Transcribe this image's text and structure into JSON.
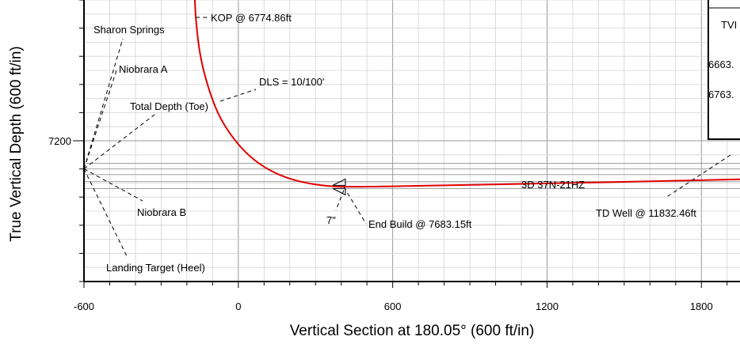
{
  "chart_data": {
    "type": "line",
    "xlabel": "Vertical Section at 180.05° (600 ft/in)",
    "ylabel": "True Vertical Depth (600 ft/in)",
    "xlim": [
      -600,
      1950
    ],
    "ylim": [
      7700,
      6700
    ],
    "x_ticks": [
      -600,
      0,
      600,
      1200,
      1800
    ],
    "x_tick_labels": [
      "-600",
      "0",
      "600",
      "1200",
      "1800"
    ],
    "y_ticks": [
      7200
    ],
    "y_tick_labels": [
      "7200"
    ],
    "grid": true,
    "series": [
      {
        "name": "3D 37N-21HZ",
        "color": "#e00000",
        "x": [
          -170,
          -165,
          -150,
          -120,
          -80,
          -30,
          30,
          100,
          180,
          260,
          340,
          410,
          600,
          1000,
          1400,
          1800,
          1950
        ],
        "y": [
          6680,
          6774.86,
          6895,
          7005,
          7105,
          7180,
          7245,
          7295,
          7330,
          7350,
          7360,
          7364,
          7362,
          7355,
          7348,
          7340,
          7337
        ]
      }
    ],
    "formation_lines": [
      {
        "name": "Sharon Springs",
        "tvd": 7280
      },
      {
        "name": "Niobrara A",
        "tvd": 7300
      },
      {
        "name": "Total Depth (Toe)",
        "tvd": 7320
      },
      {
        "name": "Niobrara B",
        "tvd": 7345
      },
      {
        "name": "Landing Target (Heel)",
        "tvd": 7370
      }
    ],
    "annotations": [
      {
        "id": "kop",
        "text": "KOP @ 6774.86ft"
      },
      {
        "id": "dls",
        "text": "DLS = 10/100'"
      },
      {
        "id": "end-build",
        "text": "End Build @ 7683.15ft"
      },
      {
        "id": "casing",
        "text": "7\""
      },
      {
        "id": "well-name",
        "text": "3D 37N-21HZ",
        "color": "#e00000"
      },
      {
        "id": "td-well",
        "text": "TD Well @ 11832.46ft"
      }
    ],
    "legend_box": {
      "header": "TVI",
      "rows": [
        "6663.",
        "6763."
      ]
    }
  }
}
